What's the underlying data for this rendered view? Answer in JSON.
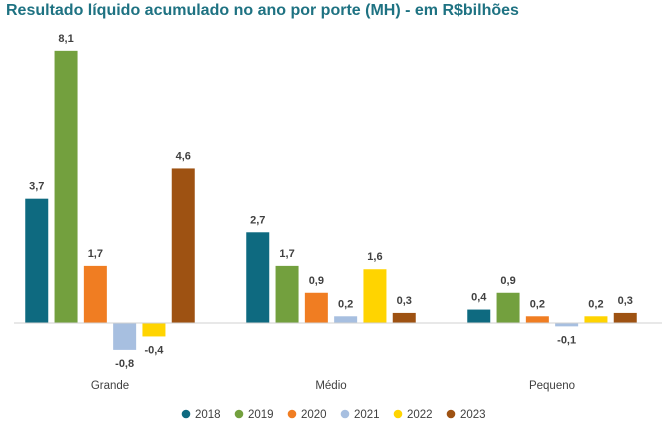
{
  "chart_data": {
    "type": "bar",
    "title": "Resultado líquido acumulado no ano por porte (MH) - em R$bilhões",
    "categories": [
      "Grande",
      "Médio",
      "Pequeno"
    ],
    "series": [
      {
        "name": "2018",
        "color": "#0e6a80",
        "values": [
          3.7,
          2.7,
          0.4
        ],
        "labels": [
          "3,7",
          "2,7",
          "0,4"
        ]
      },
      {
        "name": "2019",
        "color": "#73a03e",
        "values": [
          8.1,
          1.7,
          0.9
        ],
        "labels": [
          "8,1",
          "1,7",
          "0,9"
        ]
      },
      {
        "name": "2020",
        "color": "#f07d22",
        "values": [
          1.7,
          0.9,
          0.2
        ],
        "labels": [
          "1,7",
          "0,9",
          "0,2"
        ]
      },
      {
        "name": "2021",
        "color": "#a7bfe0",
        "values": [
          -0.8,
          0.2,
          -0.1
        ],
        "labels": [
          "-0,8",
          "0,2",
          "-0,1"
        ]
      },
      {
        "name": "2022",
        "color": "#ffd400",
        "values": [
          -0.4,
          1.6,
          0.2
        ],
        "labels": [
          "-0,4",
          "1,6",
          "0,2"
        ]
      },
      {
        "name": "2023",
        "color": "#9e5212",
        "values": [
          4.6,
          0.3,
          0.3
        ],
        "labels": [
          "4,6",
          "0,3",
          "0,3"
        ]
      }
    ],
    "ylim": [
      -1.2,
      8.3
    ],
    "xlabel": "",
    "ylabel": "",
    "grid": false,
    "legend": "bottom-center"
  }
}
